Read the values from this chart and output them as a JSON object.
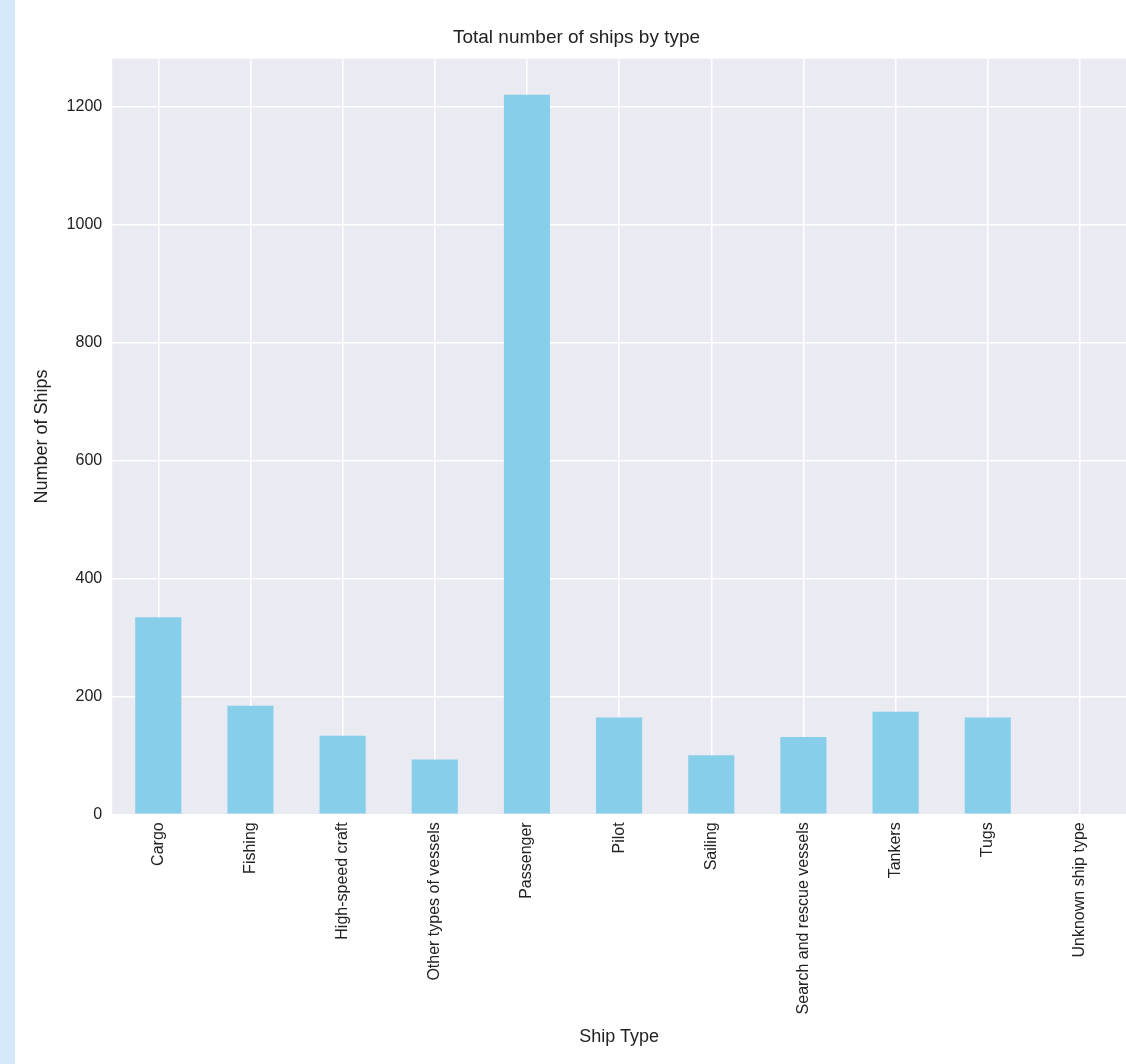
{
  "chart_data": {
    "type": "bar",
    "title": "Total number of ships by type",
    "xlabel": "Ship Type",
    "ylabel": "Number of Ships",
    "categories": [
      "Cargo",
      "Fishing",
      "High-speed craft",
      "Other types of vessels",
      "Passenger",
      "Pilot",
      "Sailing",
      "Search and rescue vessels",
      "Tankers",
      "Tugs",
      "Unknown ship type"
    ],
    "values": [
      334,
      184,
      133,
      93,
      1220,
      164,
      100,
      131,
      174,
      164,
      0
    ],
    "color": "#87ceeb",
    "ylim": [
      0,
      1281
    ],
    "yticks": [
      0,
      200,
      400,
      600,
      800,
      1000,
      1200
    ],
    "grid": true,
    "legend": false
  }
}
